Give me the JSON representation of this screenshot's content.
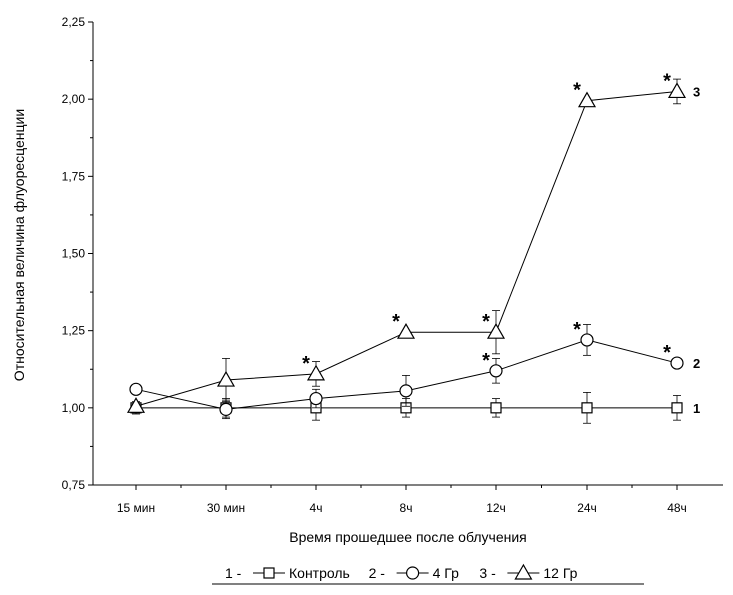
{
  "chart_data": {
    "type": "line",
    "xlabel": "Время прошедшее после облучения",
    "ylabel": "Относительная величина флуоресценции",
    "categories": [
      "15 мин",
      "30 мин",
      "4ч",
      "8ч",
      "12ч",
      "24ч",
      "48ч"
    ],
    "ylim": [
      0.75,
      2.25
    ],
    "yticks": [
      "0,75",
      "1,00",
      "1,25",
      "1,50",
      "1,75",
      "2,00",
      "2,25"
    ],
    "grid": false,
    "legend_position": "bottom",
    "series": [
      {
        "name": "Контроль",
        "number": "1",
        "legend_prefix": "1 -",
        "marker": "square",
        "values": [
          1.0,
          1.0,
          1.0,
          1.0,
          1.0,
          1.0,
          1.0
        ],
        "errors": [
          0.02,
          0.03,
          0.04,
          0.03,
          0.03,
          0.05,
          0.04
        ],
        "significant": [
          false,
          false,
          false,
          false,
          false,
          false,
          false
        ]
      },
      {
        "name": "4 Гр",
        "number": "2",
        "legend_prefix": "2 -",
        "marker": "circle",
        "values": [
          1.06,
          0.995,
          1.03,
          1.055,
          1.12,
          1.22,
          1.145
        ],
        "errors": [
          0.0,
          0.03,
          0.03,
          0.05,
          0.04,
          0.05,
          0.0
        ],
        "significant": [
          false,
          false,
          false,
          false,
          true,
          true,
          true
        ]
      },
      {
        "name": "12 Гр",
        "number": "3",
        "legend_prefix": "3 -",
        "marker": "triangle",
        "values": [
          1.005,
          1.09,
          1.11,
          1.245,
          1.245,
          1.995,
          2.025
        ],
        "errors": [
          0.0,
          0.07,
          0.04,
          0.0,
          0.07,
          0.0,
          0.04
        ],
        "significant": [
          false,
          false,
          true,
          true,
          true,
          true,
          true
        ]
      }
    ],
    "significance_symbol": "*"
  }
}
